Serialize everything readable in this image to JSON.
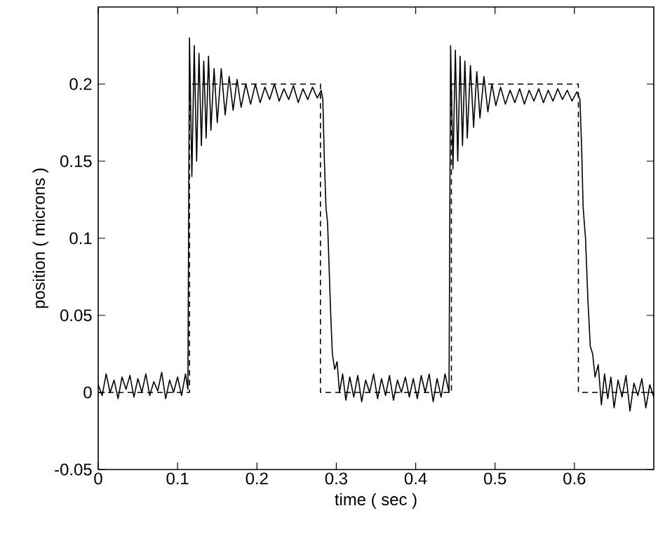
{
  "chart_data": {
    "type": "line",
    "xlabel": "time ( sec )",
    "ylabel": "position ( microns )",
    "xlim": [
      0,
      0.7
    ],
    "ylim": [
      -0.05,
      0.25
    ],
    "xticks": [
      0,
      0.1,
      0.2,
      0.3,
      0.4,
      0.5,
      0.6
    ],
    "yticks": [
      -0.05,
      0,
      0.05,
      0.1,
      0.15,
      0.2
    ],
    "marker": "none",
    "series": [
      {
        "color": "#000000",
        "line_style": "solid",
        "x": [
          0,
          0.005,
          0.01,
          0.015,
          0.02,
          0.025,
          0.03,
          0.035,
          0.04,
          0.045,
          0.05,
          0.055,
          0.06,
          0.065,
          0.07,
          0.075,
          0.08,
          0.085,
          0.09,
          0.095,
          0.1,
          0.105,
          0.11,
          0.113,
          0.115,
          0.118,
          0.121,
          0.124,
          0.127,
          0.13,
          0.133,
          0.136,
          0.139,
          0.142,
          0.146,
          0.15,
          0.155,
          0.16,
          0.165,
          0.17,
          0.175,
          0.18,
          0.186,
          0.192,
          0.198,
          0.204,
          0.21,
          0.216,
          0.222,
          0.228,
          0.234,
          0.24,
          0.246,
          0.252,
          0.258,
          0.264,
          0.27,
          0.276,
          0.281,
          0.283,
          0.285,
          0.287,
          0.289,
          0.291,
          0.293,
          0.295,
          0.298,
          0.301,
          0.304,
          0.308,
          0.312,
          0.317,
          0.322,
          0.327,
          0.332,
          0.337,
          0.342,
          0.347,
          0.352,
          0.357,
          0.362,
          0.367,
          0.372,
          0.377,
          0.382,
          0.387,
          0.392,
          0.397,
          0.402,
          0.407,
          0.412,
          0.417,
          0.422,
          0.427,
          0.432,
          0.437,
          0.442,
          0.444,
          0.447,
          0.45,
          0.453,
          0.456,
          0.459,
          0.462,
          0.465,
          0.469,
          0.473,
          0.477,
          0.481,
          0.486,
          0.491,
          0.496,
          0.501,
          0.507,
          0.513,
          0.519,
          0.525,
          0.531,
          0.537,
          0.543,
          0.549,
          0.555,
          0.561,
          0.567,
          0.573,
          0.579,
          0.585,
          0.591,
          0.597,
          0.603,
          0.607,
          0.609,
          0.611,
          0.614,
          0.617,
          0.62,
          0.623,
          0.626,
          0.63,
          0.634,
          0.638,
          0.642,
          0.646,
          0.65,
          0.655,
          0.66,
          0.665,
          0.67,
          0.675,
          0.68,
          0.685,
          0.69,
          0.695,
          0.7
        ],
        "values": [
          0.005,
          -0.002,
          0.012,
          0.0,
          0.008,
          -0.004,
          0.01,
          0.002,
          0.011,
          -0.003,
          0.009,
          0.0,
          0.012,
          -0.002,
          0.007,
          0.001,
          0.013,
          -0.004,
          0.008,
          0.0,
          0.01,
          -0.002,
          0.012,
          0.002,
          0.23,
          0.14,
          0.225,
          0.15,
          0.22,
          0.16,
          0.215,
          0.165,
          0.218,
          0.17,
          0.21,
          0.175,
          0.21,
          0.18,
          0.205,
          0.183,
          0.203,
          0.185,
          0.2,
          0.187,
          0.2,
          0.188,
          0.198,
          0.19,
          0.2,
          0.189,
          0.197,
          0.19,
          0.199,
          0.188,
          0.197,
          0.19,
          0.198,
          0.191,
          0.196,
          0.19,
          0.15,
          0.12,
          0.11,
          0.08,
          0.05,
          0.025,
          0.015,
          0.02,
          0.0,
          0.012,
          -0.005,
          0.01,
          -0.003,
          0.011,
          -0.006,
          0.008,
          0.0,
          0.012,
          -0.004,
          0.009,
          -0.002,
          0.011,
          -0.005,
          0.008,
          0.0,
          0.01,
          -0.003,
          0.009,
          -0.004,
          0.011,
          0.0,
          0.012,
          -0.006,
          0.009,
          -0.003,
          0.012,
          0.0,
          0.225,
          0.145,
          0.222,
          0.15,
          0.218,
          0.16,
          0.215,
          0.165,
          0.212,
          0.172,
          0.208,
          0.178,
          0.205,
          0.182,
          0.2,
          0.186,
          0.198,
          0.187,
          0.196,
          0.188,
          0.197,
          0.187,
          0.196,
          0.189,
          0.197,
          0.188,
          0.196,
          0.189,
          0.197,
          0.19,
          0.196,
          0.189,
          0.195,
          0.19,
          0.16,
          0.12,
          0.1,
          0.06,
          0.03,
          0.025,
          0.01,
          0.018,
          -0.008,
          0.012,
          -0.004,
          0.01,
          -0.01,
          0.008,
          -0.003,
          0.011,
          -0.012,
          0.006,
          -0.002,
          0.009,
          -0.01,
          0.005,
          -0.003
        ]
      },
      {
        "color": "#000000",
        "line_style": "dashed",
        "x": [
          0,
          0.115,
          0.115,
          0.28,
          0.28,
          0.445,
          0.445,
          0.605,
          0.605,
          0.7
        ],
        "values": [
          0,
          0,
          0.2,
          0.2,
          0,
          0,
          0.2,
          0.2,
          0,
          0
        ]
      }
    ]
  }
}
